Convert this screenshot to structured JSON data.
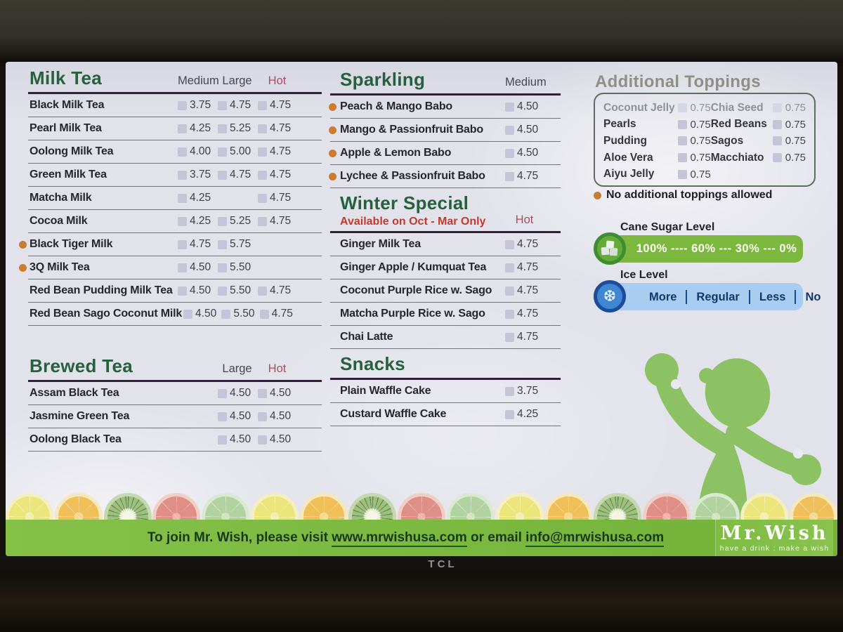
{
  "tv": {
    "brand": "TCL"
  },
  "menu": {
    "milk_tea": {
      "title": "Milk Tea",
      "columns": [
        {
          "label": "Medium",
          "style": "dark"
        },
        {
          "label": "Large",
          "style": "dark"
        },
        {
          "label": "Hot",
          "style": "hot"
        }
      ],
      "items": [
        {
          "name": "Black Milk Tea",
          "dot": false,
          "prices": [
            "3.75",
            "4.75",
            "4.75"
          ]
        },
        {
          "name": "Pearl Milk Tea",
          "dot": false,
          "prices": [
            "4.25",
            "5.25",
            "4.75"
          ]
        },
        {
          "name": "Oolong Milk Tea",
          "dot": false,
          "prices": [
            "4.00",
            "5.00",
            "4.75"
          ]
        },
        {
          "name": "Green Milk Tea",
          "dot": false,
          "prices": [
            "3.75",
            "4.75",
            "4.75"
          ]
        },
        {
          "name": "Matcha Milk",
          "dot": false,
          "prices": [
            "4.25",
            null,
            "4.75"
          ]
        },
        {
          "name": "Cocoa Milk",
          "dot": false,
          "prices": [
            "4.25",
            "5.25",
            "4.75"
          ]
        },
        {
          "name": "Black Tiger Milk",
          "dot": true,
          "prices": [
            "4.75",
            "5.75",
            null
          ]
        },
        {
          "name": "3Q Milk Tea",
          "dot": true,
          "prices": [
            "4.50",
            "5.50",
            null
          ]
        },
        {
          "name": "Red Bean Pudding Milk Tea",
          "dot": false,
          "prices": [
            "4.50",
            "5.50",
            "4.75"
          ]
        },
        {
          "name": "Red Bean Sago Coconut Milk",
          "dot": false,
          "prices": [
            "4.50",
            "5.50",
            "4.75"
          ]
        }
      ]
    },
    "brewed_tea": {
      "title": "Brewed Tea",
      "columns": [
        {
          "label": "Large",
          "style": "dark"
        },
        {
          "label": "Hot",
          "style": "hot"
        }
      ],
      "items": [
        {
          "name": "Assam Black Tea",
          "dot": false,
          "prices": [
            "4.50",
            "4.50"
          ]
        },
        {
          "name": "Jasmine Green Tea",
          "dot": false,
          "prices": [
            "4.50",
            "4.50"
          ]
        },
        {
          "name": "Oolong Black Tea",
          "dot": false,
          "prices": [
            "4.50",
            "4.50"
          ]
        }
      ]
    },
    "sparkling": {
      "title": "Sparkling",
      "columns": [
        {
          "label": "Medium",
          "style": "dark"
        }
      ],
      "items": [
        {
          "name": "Peach & Mango Babo",
          "dot": true,
          "prices": [
            "4.50"
          ]
        },
        {
          "name": "Mango & Passionfruit Babo",
          "dot": true,
          "prices": [
            "4.50"
          ]
        },
        {
          "name": "Apple & Lemon Babo",
          "dot": true,
          "prices": [
            "4.50"
          ]
        },
        {
          "name": "Lychee & Passionfruit Babo",
          "dot": true,
          "prices": [
            "4.75"
          ]
        }
      ]
    },
    "winter_special": {
      "title": "Winter Special",
      "subtitle": "Available on Oct - Mar Only",
      "columns": [
        {
          "label": "Hot",
          "style": "hot"
        }
      ],
      "items": [
        {
          "name": "Ginger Milk Tea",
          "dot": false,
          "prices": [
            "4.75"
          ]
        },
        {
          "name": "Ginger Apple / Kumquat Tea",
          "dot": false,
          "prices": [
            "4.75"
          ]
        },
        {
          "name": "Coconut Purple Rice w. Sago",
          "dot": false,
          "prices": [
            "4.75"
          ]
        },
        {
          "name": "Matcha Purple Rice w. Sago",
          "dot": false,
          "prices": [
            "4.75"
          ]
        },
        {
          "name": "Chai Latte",
          "dot": false,
          "prices": [
            "4.75"
          ]
        }
      ]
    },
    "snacks": {
      "title": "Snacks",
      "columns": [],
      "items": [
        {
          "name": "Plain Waffle Cake",
          "dot": false,
          "prices": [
            "3.75"
          ]
        },
        {
          "name": "Custard Waffle Cake",
          "dot": false,
          "prices": [
            "4.25"
          ]
        }
      ]
    }
  },
  "toppings": {
    "title": "Additional Toppings",
    "left": [
      {
        "name": "Coconut Jelly",
        "price": "0.75"
      },
      {
        "name": "Pearls",
        "price": "0.75"
      },
      {
        "name": "Pudding",
        "price": "0.75"
      },
      {
        "name": "Aloe Vera",
        "price": "0.75"
      },
      {
        "name": "Aiyu Jelly",
        "price": "0.75"
      }
    ],
    "right": [
      {
        "name": "Chia Seed",
        "price": "0.75"
      },
      {
        "name": "Red Beans",
        "price": "0.75"
      },
      {
        "name": "Sagos",
        "price": "0.75"
      },
      {
        "name": "Macchiato",
        "price": "0.75"
      }
    ],
    "note": "No additional toppings allowed"
  },
  "sugar": {
    "label": "Cane Sugar Level",
    "scale": "100% ---- 60% --- 30% --- 0%"
  },
  "ice": {
    "label": "Ice Level",
    "options": [
      "More",
      "Regular",
      "Less",
      "No"
    ]
  },
  "fruit_pattern": [
    "lemon",
    "orange",
    "kiwi",
    "grapefruit",
    "lime"
  ],
  "fruit_count": 17,
  "banner": {
    "text_prefix": "To join Mr. Wish, please visit ",
    "link1": "www.mrwishusa.com",
    "text_middle": " or email ",
    "link2": "info@mrwishusa.com"
  },
  "logo": {
    "name": "Mr.Wish",
    "tagline": "have a drink : make a wish"
  },
  "colors": {
    "section_green": "#27603d",
    "hot_red": "#b04a5e",
    "winter_red": "#c33a2c",
    "dot_orange": "#cb7c31",
    "checkbox_gray": "#c5c5d7",
    "banner_green": "#7ab63e",
    "sugar_green": "#7bb83d",
    "ice_blue": "#a9cdf0",
    "ice_text_navy": "#12386b",
    "mascot_green": "#8cc263"
  }
}
